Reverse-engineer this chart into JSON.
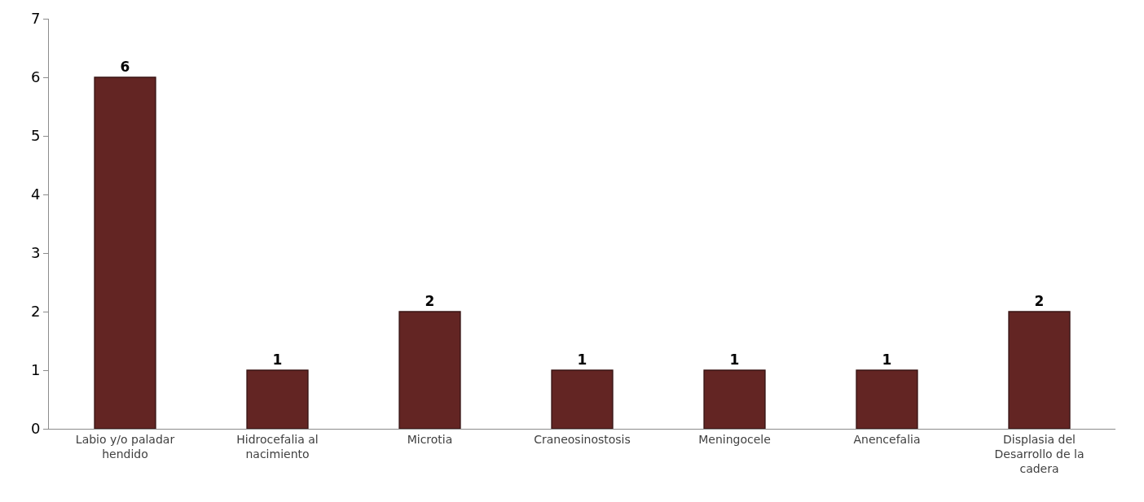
{
  "chart_data": {
    "type": "bar",
    "categories": [
      "Labio y/o paladar hendido",
      "Hidrocefalia al nacimiento",
      "Microtia",
      "Craneosinostosis",
      "Meningocele",
      "Anencefalia",
      "Displasia del Desarrollo de la cadera"
    ],
    "values": [
      6,
      1,
      2,
      1,
      1,
      1,
      2
    ],
    "color": "#632523",
    "ylim": [
      0,
      7
    ],
    "yticks": [
      0,
      1,
      2,
      3,
      4,
      5,
      6,
      7
    ],
    "data_labels": true
  }
}
